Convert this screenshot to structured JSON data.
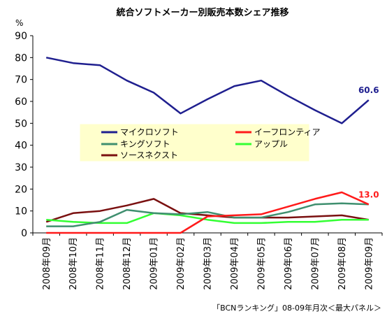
{
  "chart_data": {
    "type": "line",
    "title": "統合ソフトメーカー別販売本数シェア推移",
    "y_unit": "%",
    "source": "「BCNランキング」08-09年月次＜最大パネル＞",
    "ylim": [
      0,
      90
    ],
    "yticks": [
      "0",
      "10",
      "20",
      "30",
      "40",
      "50",
      "60",
      "70",
      "80",
      "90"
    ],
    "grid": false,
    "legend_position": "center",
    "categories": [
      "2008年09月",
      "2008年10月",
      "2008年11月",
      "2008年12月",
      "2009年01月",
      "2009年02月",
      "2009年03月",
      "2009年04月",
      "2009年05月",
      "2009年06月",
      "2009年07月",
      "2009年08月",
      "2009年09月"
    ],
    "series": [
      {
        "name": "マイクロソフト",
        "color": "#1f1f8f",
        "values": [
          80,
          77.5,
          76.5,
          69.5,
          64,
          54.5,
          61,
          67,
          69.5,
          62.5,
          56,
          50,
          60.6
        ]
      },
      {
        "name": "イーフロンティア",
        "color": "#ff1a1a",
        "values": [
          0,
          0,
          0,
          0,
          0,
          0,
          7.5,
          8,
          8.5,
          12,
          15.5,
          18.5,
          13.0
        ]
      },
      {
        "name": "キングソフト",
        "color": "#3f8f6f",
        "values": [
          3,
          3,
          5,
          10.5,
          9,
          8.5,
          9.5,
          7,
          7,
          9.5,
          13,
          13.5,
          13
        ]
      },
      {
        "name": "アップル",
        "color": "#33ff33",
        "values": [
          6,
          5,
          4.5,
          4.5,
          9,
          8,
          6,
          4.5,
          4.5,
          5,
          5,
          6,
          6
        ]
      },
      {
        "name": "ソースネクスト",
        "color": "#7a1010",
        "values": [
          5,
          9,
          10,
          12.5,
          15.5,
          9,
          8,
          7,
          7,
          7,
          7.5,
          8,
          6
        ]
      }
    ],
    "data_labels": [
      {
        "series": "マイクロソフト",
        "index": 12,
        "text": "60.6",
        "color": "#1f1f8f"
      },
      {
        "series": "イーフロンティア",
        "index": 12,
        "text": "13.0",
        "color": "#ff1a1a"
      }
    ]
  }
}
